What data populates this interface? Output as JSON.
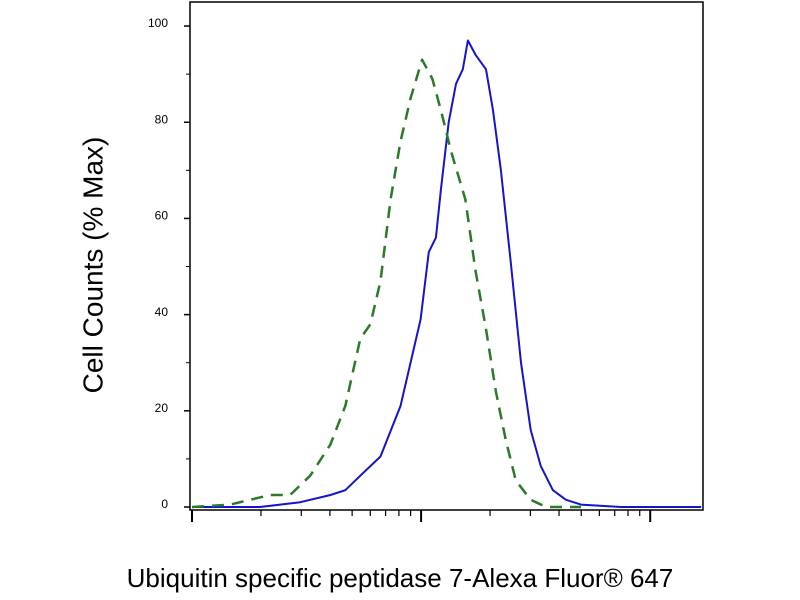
{
  "chart_data": {
    "type": "line",
    "xlabel": "Ubiquitin specific peptidase 7-Alexa Fluor® 647",
    "ylabel": "Cell Counts (% Max)",
    "xscale": "log",
    "xlim": [
      1,
      170
    ],
    "xticks": [
      1,
      10,
      100
    ],
    "xminorticks": [
      2,
      3,
      4,
      5,
      6,
      7,
      8,
      9,
      20,
      30,
      40,
      50,
      60,
      70,
      80,
      90
    ],
    "ylim": [
      0,
      105
    ],
    "yticks": [
      0,
      20,
      40,
      60,
      80,
      100
    ],
    "yminorticks": [
      10,
      30,
      50,
      70,
      90
    ],
    "series": [
      {
        "color": "#1414c8",
        "dash": false,
        "x": [
          1,
          1.98,
          2.97,
          4.02,
          4.67,
          5.43,
          6.65,
          8.13,
          9.95,
          10.8,
          11.6,
          12.2,
          13.2,
          14.2,
          15.2,
          16.0,
          17.3,
          19.2,
          20.6,
          22.3,
          24.6,
          27.3,
          30.1,
          33.3,
          37.6,
          42.9,
          49.9,
          74.6,
          167
        ],
        "values": [
          0,
          0,
          1,
          2.5,
          3.5,
          6.5,
          10.5,
          21,
          39,
          53,
          56,
          66,
          80,
          88,
          91,
          97,
          94,
          91,
          82.5,
          70,
          51,
          30,
          16,
          8.5,
          3.5,
          1.5,
          0.5,
          0,
          0
        ]
      },
      {
        "color": "#2a7a2a",
        "dash": true,
        "x": [
          1,
          1.47,
          2.19,
          2.68,
          3.28,
          4.02,
          4.67,
          5.43,
          6.01,
          6.65,
          7.36,
          8.13,
          9.0,
          10.1,
          11.2,
          12.2,
          13.5,
          15.6,
          17.3,
          19.2,
          21.2,
          23.4,
          25.9,
          30.1,
          35.1,
          49.9
        ],
        "values": [
          0,
          0.5,
          2.5,
          2.5,
          6.5,
          13,
          21,
          35,
          38,
          47,
          64,
          76,
          85,
          93,
          89,
          82.5,
          74,
          64,
          49,
          37,
          24,
          14,
          5.5,
          1.5,
          0,
          0
        ]
      }
    ]
  }
}
